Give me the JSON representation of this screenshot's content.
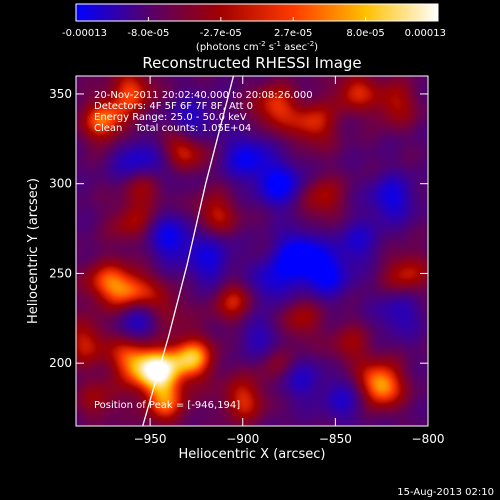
{
  "colorbar": {
    "ticks": [
      "-0.00013",
      "-8.0e-05",
      "-2.7e-05",
      "2.7e-05",
      "8.0e-05",
      "0.00013"
    ],
    "unit_parts": [
      "(photons cm",
      "-2",
      " s",
      "-1",
      " asec",
      "-2",
      ")"
    ]
  },
  "chart_data": {
    "type": "heatmap",
    "title": "Reconstructed RHESSI Image",
    "xlabel": "Heliocentric X (arcsec)",
    "ylabel": "Heliocentric Y (arcsec)",
    "xlim": [
      -990,
      -800
    ],
    "ylim": [
      165,
      360
    ],
    "x_ticks": [
      -950,
      -900,
      -850,
      -800
    ],
    "y_ticks": [
      200,
      250,
      300,
      350
    ],
    "colormap": [
      "#0000ff",
      "#55006a",
      "#a10000",
      "#ff3a00",
      "#ffc000",
      "#ffffff"
    ],
    "color_range": [
      -0.00013,
      0.00013
    ],
    "annotations": [
      "20-Nov-2011 20:02:40.000 to 20:08:26.000",
      "Detectors: 4F 5F 6F 7F 8F, Att 0",
      "Energy Range: 25.0 - 50.0 keV",
      "Clean    Total counts: 1.05E+04"
    ],
    "peak_label": "Position of Peak = [-946,194]",
    "peak": [
      -946,
      194
    ],
    "limb_curve": [
      [
        -954,
        165
      ],
      [
        -940,
        215
      ],
      [
        -930,
        255
      ],
      [
        -920,
        300
      ],
      [
        -905,
        360
      ]
    ],
    "blobs": [
      {
        "x": -947,
        "y": 196,
        "v": 1.0
      },
      {
        "x": -928,
        "y": 203,
        "v": 0.85
      },
      {
        "x": -961,
        "y": 203,
        "v": 0.6
      },
      {
        "x": -960,
        "y": 240,
        "v": 0.7
      },
      {
        "x": -944,
        "y": 230,
        "v": 0.45
      },
      {
        "x": -975,
        "y": 245,
        "v": 0.55
      },
      {
        "x": -985,
        "y": 212,
        "v": 0.5
      },
      {
        "x": -942,
        "y": 178,
        "v": 0.6
      },
      {
        "x": -975,
        "y": 335,
        "v": 0.7
      },
      {
        "x": -960,
        "y": 352,
        "v": 0.6
      },
      {
        "x": -933,
        "y": 318,
        "v": 0.75
      },
      {
        "x": -953,
        "y": 300,
        "v": 0.5
      },
      {
        "x": -915,
        "y": 282,
        "v": 0.55
      },
      {
        "x": -905,
        "y": 235,
        "v": 0.5
      },
      {
        "x": -883,
        "y": 343,
        "v": 0.6
      },
      {
        "x": -862,
        "y": 333,
        "v": 0.55
      },
      {
        "x": -840,
        "y": 352,
        "v": 0.5
      },
      {
        "x": -818,
        "y": 345,
        "v": 0.45
      },
      {
        "x": -858,
        "y": 292,
        "v": 0.45
      },
      {
        "x": -812,
        "y": 250,
        "v": 0.5
      },
      {
        "x": -870,
        "y": 225,
        "v": 0.4
      },
      {
        "x": -826,
        "y": 188,
        "v": 0.9
      },
      {
        "x": -842,
        "y": 210,
        "v": 0.35
      },
      {
        "x": -900,
        "y": 180,
        "v": 0.55
      },
      {
        "x": -880,
        "y": 200,
        "v": 0.35
      },
      {
        "x": -978,
        "y": 180,
        "v": 0.35
      },
      {
        "x": -960,
        "y": 278,
        "v": 0.4
      },
      {
        "x": -958,
        "y": 312,
        "v": -0.55
      },
      {
        "x": -928,
        "y": 335,
        "v": -0.45
      },
      {
        "x": -940,
        "y": 270,
        "v": -0.6
      },
      {
        "x": -940,
        "y": 310,
        "v": -0.4
      },
      {
        "x": -955,
        "y": 225,
        "v": -0.6
      },
      {
        "x": -918,
        "y": 253,
        "v": -0.4
      },
      {
        "x": -898,
        "y": 315,
        "v": -0.6
      },
      {
        "x": -880,
        "y": 300,
        "v": -0.7
      },
      {
        "x": -870,
        "y": 260,
        "v": -0.85
      },
      {
        "x": -885,
        "y": 245,
        "v": -0.5
      },
      {
        "x": -855,
        "y": 250,
        "v": -0.65
      },
      {
        "x": -838,
        "y": 268,
        "v": -0.4
      },
      {
        "x": -820,
        "y": 292,
        "v": -0.55
      },
      {
        "x": -816,
        "y": 228,
        "v": -0.4
      },
      {
        "x": -890,
        "y": 215,
        "v": -0.4
      },
      {
        "x": -870,
        "y": 192,
        "v": -0.45
      },
      {
        "x": -845,
        "y": 180,
        "v": -0.4
      },
      {
        "x": -918,
        "y": 268,
        "v": -0.3
      }
    ]
  },
  "footer": {
    "timestamp": "15-Aug-2013 02:10"
  }
}
